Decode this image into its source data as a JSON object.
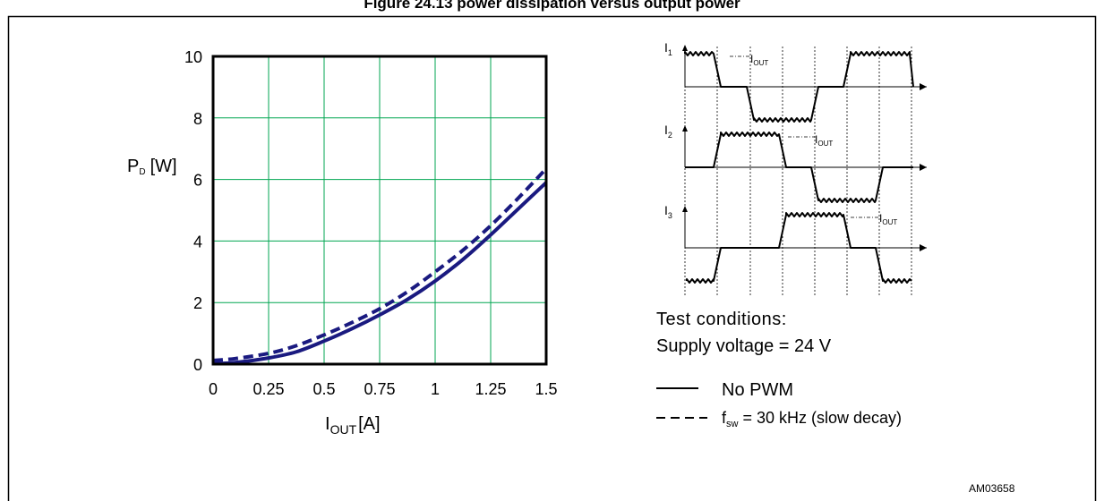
{
  "figure_title": "Figure 24.13 power dissipation versus output power",
  "figure_id": "AM03658",
  "chart_data": {
    "type": "line",
    "ylabel": "P",
    "ylabel_sub": "D",
    "ylabel_unit": "[W]",
    "xlabel": "I",
    "xlabel_sub": "OUT",
    "xlabel_unit": "[A]",
    "xlim": [
      0,
      1.5
    ],
    "ylim": [
      0,
      10
    ],
    "xticks": [
      0,
      0.25,
      0.5,
      0.75,
      1,
      1.25,
      1.5
    ],
    "xtick_labels": [
      "0",
      "0.25",
      "0.5",
      "0.75",
      "1",
      "1.25",
      "1.5"
    ],
    "yticks": [
      0,
      2,
      4,
      6,
      8,
      10
    ],
    "ytick_labels": [
      "0",
      "2",
      "4",
      "6",
      "8",
      "10"
    ],
    "grid": true,
    "grid_color": "#00a651",
    "line_color": "#1a1a80",
    "series": [
      {
        "name": "No PWM",
        "style": "solid",
        "x": [
          0,
          0.1,
          0.25,
          0.375,
          0.5,
          0.625,
          0.75,
          0.875,
          1.0,
          1.125,
          1.25,
          1.375,
          1.5
        ],
        "y": [
          0.02,
          0.05,
          0.2,
          0.4,
          0.75,
          1.15,
          1.6,
          2.1,
          2.7,
          3.4,
          4.2,
          5.05,
          5.9
        ]
      },
      {
        "name": "f_sw = 30 kHz (slow decay)",
        "style": "dashed",
        "x": [
          0,
          0.1,
          0.25,
          0.375,
          0.5,
          0.625,
          0.75,
          0.875,
          1.0,
          1.125,
          1.25,
          1.375,
          1.5
        ],
        "y": [
          0.12,
          0.18,
          0.35,
          0.6,
          0.95,
          1.35,
          1.8,
          2.35,
          3.0,
          3.7,
          4.5,
          5.4,
          6.35
        ]
      }
    ]
  },
  "waveforms": {
    "channels": [
      {
        "label": "I",
        "sub": "1",
        "iout_label": "I",
        "iout_sub": "OUT"
      },
      {
        "label": "I",
        "sub": "2",
        "iout_label": "I",
        "iout_sub": "OUT"
      },
      {
        "label": "I",
        "sub": "3",
        "iout_label": "I",
        "iout_sub": "OUT"
      }
    ]
  },
  "legend": {
    "conditions_title": "Test conditions:",
    "supply_voltage": "Supply  voltage = 24 V",
    "items": [
      {
        "style": "solid",
        "label": "No PWM"
      },
      {
        "style": "dashed",
        "label_prefix": "f",
        "label_sub": "sw",
        "label_rest": " = 30 kHz (slow decay)"
      }
    ]
  }
}
